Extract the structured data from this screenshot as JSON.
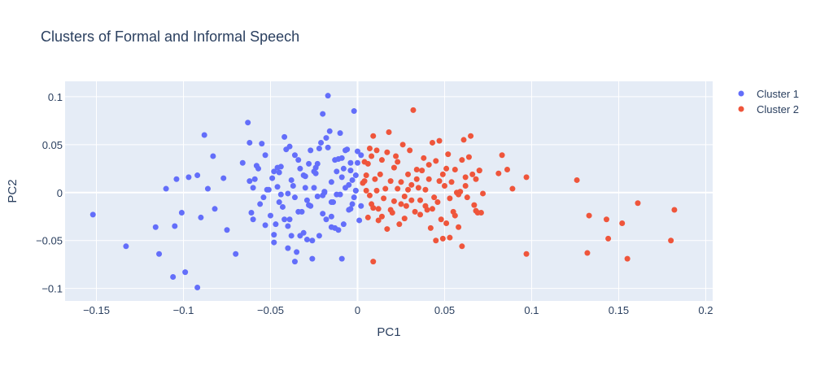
{
  "colors": {
    "plot_bg": "#e5ecf6",
    "grid": "#ffffff",
    "text": "#2a3f5f"
  },
  "chart_data": {
    "type": "scatter",
    "title": "Clusters of Formal and Informal Speech",
    "xlabel": "PC1",
    "ylabel": "PC2",
    "xlim": [
      -0.168,
      0.204
    ],
    "ylim": [
      -0.113,
      0.116
    ],
    "x_ticks": [
      -0.15,
      -0.1,
      -0.05,
      0,
      0.05,
      0.1,
      0.15,
      0.2
    ],
    "x_tick_labels": [
      "−0.15",
      "−0.1",
      "−0.05",
      "0",
      "0.05",
      "0.1",
      "0.15",
      "0.2"
    ],
    "y_ticks": [
      -0.1,
      -0.05,
      0,
      0.05,
      0.1
    ],
    "y_tick_labels": [
      "−0.1",
      "−0.05",
      "0",
      "0.05",
      "0.1"
    ],
    "grid": true,
    "legend_position": "top-right",
    "series": [
      {
        "name": "Cluster 1",
        "color": "#636efa",
        "points": [
          [
            -0.152,
            -0.023
          ],
          [
            -0.133,
            -0.056
          ],
          [
            -0.116,
            -0.036
          ],
          [
            -0.114,
            -0.064
          ],
          [
            -0.11,
            0.004
          ],
          [
            -0.106,
            -0.088
          ],
          [
            -0.105,
            -0.035
          ],
          [
            -0.104,
            0.014
          ],
          [
            -0.101,
            -0.021
          ],
          [
            -0.099,
            -0.083
          ],
          [
            -0.097,
            0.016
          ],
          [
            -0.092,
            -0.099
          ],
          [
            -0.092,
            0.018
          ],
          [
            -0.09,
            -0.026
          ],
          [
            -0.088,
            0.06
          ],
          [
            -0.086,
            0.004
          ],
          [
            -0.083,
            0.038
          ],
          [
            -0.082,
            -0.017
          ],
          [
            -0.077,
            0.015
          ],
          [
            -0.075,
            -0.039
          ],
          [
            -0.07,
            -0.064
          ],
          [
            -0.063,
            0.073
          ],
          [
            -0.066,
            0.031
          ],
          [
            -0.062,
            0.012
          ],
          [
            -0.061,
            -0.021
          ],
          [
            -0.06,
            0.005
          ],
          [
            -0.059,
            0.014
          ],
          [
            -0.057,
            0.025
          ],
          [
            -0.055,
            0.051
          ],
          [
            -0.054,
            -0.005
          ],
          [
            -0.053,
            0.039
          ],
          [
            -0.052,
            0.003
          ],
          [
            -0.051,
            0.003
          ],
          [
            -0.05,
            -0.024
          ],
          [
            -0.049,
            0.015
          ],
          [
            -0.048,
            -0.044
          ],
          [
            -0.048,
            -0.052
          ],
          [
            -0.047,
            -0.033
          ],
          [
            -0.046,
            0.006
          ],
          [
            -0.045,
            0.021
          ],
          [
            -0.044,
            -0.002
          ],
          [
            -0.043,
            -0.015
          ],
          [
            -0.042,
            0.058
          ],
          [
            -0.041,
            0.045
          ],
          [
            -0.04,
            -0.035
          ],
          [
            -0.039,
            -0.028
          ],
          [
            -0.038,
            0.013
          ],
          [
            -0.037,
            0.007
          ],
          [
            -0.036,
            -0.005
          ],
          [
            -0.035,
            -0.062
          ],
          [
            -0.034,
            0.034
          ],
          [
            -0.033,
            0.025
          ],
          [
            -0.032,
            -0.02
          ],
          [
            -0.031,
            -0.042
          ],
          [
            -0.03,
            0.017
          ],
          [
            -0.029,
            -0.008
          ],
          [
            -0.028,
            -0.013
          ],
          [
            -0.027,
            0.044
          ],
          [
            -0.026,
            -0.05
          ],
          [
            -0.025,
            0.005
          ],
          [
            -0.024,
            0.026
          ],
          [
            -0.023,
            -0.004
          ],
          [
            -0.022,
            0.046
          ],
          [
            -0.021,
            0.052
          ],
          [
            -0.02,
            -0.022
          ],
          [
            -0.019,
            0.001
          ],
          [
            -0.018,
            -0.028
          ],
          [
            -0.017,
            0.047
          ],
          [
            -0.016,
            0.064
          ],
          [
            -0.015,
            0.011
          ],
          [
            -0.014,
            -0.01
          ],
          [
            -0.013,
            -0.037
          ],
          [
            -0.012,
            0.022
          ],
          [
            -0.011,
            0.035
          ],
          [
            -0.01,
            -0.002
          ],
          [
            -0.009,
            0.016
          ],
          [
            -0.008,
            -0.033
          ],
          [
            -0.007,
            0.005
          ],
          [
            -0.006,
            0.045
          ],
          [
            -0.005,
            -0.018
          ],
          [
            -0.004,
            0.023
          ],
          [
            -0.003,
            -0.012
          ],
          [
            -0.002,
            0.085
          ],
          [
            -0.001,
            0.002
          ],
          [
            0.0,
            0.043
          ],
          [
            0.001,
            -0.029
          ],
          [
            -0.02,
            0.082
          ],
          [
            -0.017,
            0.101
          ],
          [
            -0.018,
            0.057
          ],
          [
            -0.01,
            0.062
          ],
          [
            -0.008,
            0.025
          ],
          [
            -0.005,
            0.008
          ],
          [
            -0.009,
            -0.069
          ],
          [
            -0.003,
            0.013
          ],
          [
            -0.001,
            0.018
          ],
          [
            0.002,
            -0.014
          ],
          [
            -0.026,
            -0.069
          ],
          [
            -0.036,
            -0.072
          ],
          [
            -0.033,
            -0.045
          ],
          [
            -0.038,
            -0.045
          ],
          [
            -0.029,
            -0.049
          ],
          [
            -0.024,
            0.02
          ],
          [
            -0.022,
            -0.045
          ],
          [
            -0.02,
            -0.003
          ],
          [
            -0.015,
            -0.01
          ],
          [
            -0.013,
            0.034
          ],
          [
            -0.004,
            0.031
          ],
          [
            0.0,
            0.031
          ],
          [
            -0.002,
            -0.005
          ],
          [
            -0.011,
            -0.039
          ],
          [
            -0.015,
            -0.036
          ],
          [
            -0.027,
            -0.014
          ],
          [
            -0.031,
            0.018
          ],
          [
            -0.036,
            0.039
          ],
          [
            -0.039,
            0.048
          ],
          [
            -0.042,
            -0.028
          ],
          [
            -0.044,
            0.027
          ],
          [
            -0.046,
            0.026
          ],
          [
            -0.048,
            0.022
          ],
          [
            -0.04,
            -0.001
          ],
          [
            -0.034,
            -0.02
          ],
          [
            -0.056,
            -0.012
          ],
          [
            -0.06,
            -0.028
          ],
          [
            -0.062,
            0.052
          ],
          [
            -0.058,
            0.028
          ],
          [
            -0.053,
            -0.034
          ],
          [
            -0.045,
            -0.01
          ],
          [
            -0.04,
            -0.058
          ],
          [
            -0.03,
            0.005
          ],
          [
            -0.028,
            0.03
          ],
          [
            -0.025,
            0.022
          ],
          [
            -0.023,
            0.03
          ],
          [
            -0.019,
            0.0
          ],
          [
            -0.015,
            -0.025
          ],
          [
            -0.012,
            -0.002
          ],
          [
            -0.009,
            0.036
          ],
          [
            -0.007,
            0.044
          ],
          [
            -0.004,
            -0.017
          ],
          [
            -0.001,
            0.002
          ],
          [
            0.002,
            0.039
          ]
        ]
      },
      {
        "name": "Cluster 2",
        "color": "#ef553b",
        "points": [
          [
            0.003,
            0.01
          ],
          [
            0.004,
            0.012
          ],
          [
            0.004,
            0.032
          ],
          [
            0.005,
            0.018
          ],
          [
            0.006,
            0.03
          ],
          [
            0.007,
            0.046
          ],
          [
            0.007,
            -0.003
          ],
          [
            0.008,
            0.038
          ],
          [
            0.008,
            -0.012
          ],
          [
            0.009,
            0.059
          ],
          [
            0.009,
            -0.072
          ],
          [
            0.01,
            0.014
          ],
          [
            0.011,
            0.044
          ],
          [
            0.012,
            -0.017
          ],
          [
            0.012,
            -0.029
          ],
          [
            0.013,
            0.019
          ],
          [
            0.014,
            0.034
          ],
          [
            0.015,
            -0.006
          ],
          [
            0.016,
            0.004
          ],
          [
            0.017,
            0.042
          ],
          [
            0.018,
            0.063
          ],
          [
            0.019,
            0.012
          ],
          [
            0.02,
            -0.021
          ],
          [
            0.021,
            0.026
          ],
          [
            0.022,
            0.038
          ],
          [
            0.023,
            0.004
          ],
          [
            0.024,
            -0.033
          ],
          [
            0.025,
            0.011
          ],
          [
            0.026,
            0.05
          ],
          [
            0.027,
            -0.004
          ],
          [
            0.028,
            -0.014
          ],
          [
            0.029,
            0.019
          ],
          [
            0.03,
            0.044
          ],
          [
            0.031,
            0.008
          ],
          [
            0.032,
            0.086
          ],
          [
            0.033,
            -0.02
          ],
          [
            0.034,
            0.024
          ],
          [
            0.035,
            0.005
          ],
          [
            0.036,
            -0.008
          ],
          [
            0.037,
            0.023
          ],
          [
            0.038,
            0.036
          ],
          [
            0.039,
            0.003
          ],
          [
            0.04,
            -0.018
          ],
          [
            0.041,
            0.014
          ],
          [
            0.042,
            -0.037
          ],
          [
            0.043,
            0.052
          ],
          [
            0.044,
            -0.005
          ],
          [
            0.045,
            0.033
          ],
          [
            0.046,
            -0.01
          ],
          [
            0.047,
            0.054
          ],
          [
            0.048,
            -0.028
          ],
          [
            0.049,
            0.019
          ],
          [
            0.05,
            0.007
          ],
          [
            0.051,
            -0.032
          ],
          [
            0.052,
            0.04
          ],
          [
            0.053,
            -0.047
          ],
          [
            0.054,
            0.011
          ],
          [
            0.055,
            -0.02
          ],
          [
            0.056,
            0.024
          ],
          [
            0.057,
            0.0
          ],
          [
            0.058,
            -0.036
          ],
          [
            0.059,
            0.001
          ],
          [
            0.06,
            -0.056
          ],
          [
            0.061,
            0.055
          ],
          [
            0.062,
            0.016
          ],
          [
            0.063,
            -0.005
          ],
          [
            0.064,
            0.037
          ],
          [
            0.065,
            0.059
          ],
          [
            0.066,
            0.019
          ],
          [
            0.067,
            -0.013
          ],
          [
            0.068,
            0.014
          ],
          [
            0.069,
            -0.021
          ],
          [
            0.07,
            0.023
          ],
          [
            0.071,
            -0.021
          ],
          [
            0.072,
            -0.001
          ],
          [
            0.081,
            0.02
          ],
          [
            0.083,
            0.039
          ],
          [
            0.086,
            0.024
          ],
          [
            0.089,
            0.004
          ],
          [
            0.097,
            -0.064
          ],
          [
            0.097,
            0.016
          ],
          [
            0.126,
            0.013
          ],
          [
            0.132,
            -0.063
          ],
          [
            0.133,
            -0.024
          ],
          [
            0.143,
            -0.028
          ],
          [
            0.144,
            -0.048
          ],
          [
            0.152,
            -0.032
          ],
          [
            0.155,
            -0.069
          ],
          [
            0.161,
            -0.011
          ],
          [
            0.18,
            -0.05
          ],
          [
            0.182,
            -0.018
          ],
          [
            0.006,
            -0.026
          ],
          [
            0.011,
            0.002
          ],
          [
            0.014,
            -0.025
          ],
          [
            0.017,
            -0.038
          ],
          [
            0.019,
            -0.018
          ],
          [
            0.021,
            -0.009
          ],
          [
            0.023,
            0.032
          ],
          [
            0.025,
            -0.012
          ],
          [
            0.027,
            -0.027
          ],
          [
            0.029,
            0.003
          ],
          [
            0.031,
            -0.008
          ],
          [
            0.034,
            0.014
          ],
          [
            0.036,
            -0.023
          ],
          [
            0.039,
            -0.014
          ],
          [
            0.041,
            0.029
          ],
          [
            0.043,
            -0.017
          ],
          [
            0.045,
            -0.05
          ],
          [
            0.047,
            0.012
          ],
          [
            0.049,
            -0.048
          ],
          [
            0.051,
            0.025
          ],
          [
            0.053,
            -0.006
          ],
          [
            0.056,
            -0.024
          ],
          [
            0.058,
            -0.002
          ],
          [
            0.06,
            0.034
          ],
          [
            0.062,
            0.007
          ],
          [
            0.068,
            -0.019
          ],
          [
            0.07,
            0.023
          ],
          [
            0.005,
            0.002
          ],
          [
            0.009,
            -0.016
          ]
        ]
      }
    ]
  }
}
